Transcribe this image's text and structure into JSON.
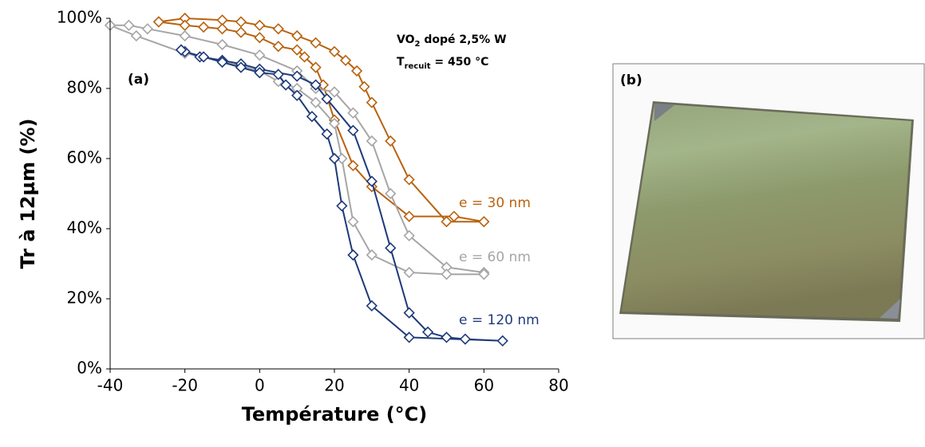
{
  "chart_data": {
    "type": "line",
    "x_label": "Température (°C)",
    "y_label": "Tr à 12µm (%)",
    "panel_label": "(a)",
    "annotations": [
      [
        "VO",
        "2",
        " dopé 2,5% W"
      ],
      [
        "T",
        "recuit",
        " = 450 °C"
      ]
    ],
    "xlim": [
      -40,
      80
    ],
    "xticks": [
      -40,
      -20,
      0,
      20,
      40,
      60,
      80
    ],
    "ylim": [
      0,
      100
    ],
    "yticks": [
      {
        "value": 0,
        "label": "0%"
      },
      {
        "value": 20,
        "label": "20%"
      },
      {
        "value": 40,
        "label": "40%"
      },
      {
        "value": 60,
        "label": "60%"
      },
      {
        "value": 80,
        "label": "80%"
      },
      {
        "value": 100,
        "label": "100%"
      }
    ],
    "series": [
      {
        "name": "e = 30 nm",
        "color": "#b8620f",
        "x": [
          -27,
          -20,
          -10,
          -5,
          0,
          5,
          10,
          15,
          20,
          23,
          26,
          28,
          30,
          35,
          40,
          50,
          60,
          52,
          40,
          30,
          25,
          20,
          17,
          15,
          12,
          10,
          5,
          0,
          -5,
          -10,
          -15,
          -20,
          -27
        ],
        "values": [
          99,
          100,
          99.5,
          99,
          98,
          97,
          95,
          93,
          90.5,
          88,
          85,
          80.5,
          76,
          65,
          54,
          42,
          42,
          43.5,
          43.5,
          52,
          58,
          71,
          81,
          86,
          89,
          91,
          92,
          94.5,
          96,
          97,
          97.5,
          98,
          99
        ]
      },
      {
        "name": "e = 60 nm",
        "color": "#a6a6a6",
        "x": [
          -40,
          -35,
          -30,
          -20,
          -10,
          0,
          10,
          15,
          20,
          25,
          30,
          35,
          40,
          50,
          60,
          60,
          50,
          40,
          30,
          25,
          22,
          20,
          15,
          10,
          5,
          0,
          -10,
          -20,
          -33,
          -40
        ],
        "values": [
          98,
          98,
          97,
          95,
          92.5,
          89.5,
          85,
          80,
          79,
          73,
          65,
          50,
          38,
          29,
          27.5,
          27,
          27,
          27.5,
          32.5,
          42,
          60,
          70,
          76,
          80,
          82,
          85,
          88,
          90,
          95,
          98
        ]
      },
      {
        "name": "e = 120 nm",
        "color": "#1f3a7a",
        "x": [
          -21,
          -16,
          -10,
          -5,
          0,
          10,
          15,
          18,
          25,
          30,
          35,
          40,
          45,
          50,
          55,
          65,
          40,
          30,
          25,
          22,
          20,
          18,
          14,
          10,
          7,
          5,
          0,
          -5,
          -10,
          -15,
          -20,
          -21
        ],
        "values": [
          91,
          89,
          88,
          87,
          85.5,
          83.5,
          81,
          77,
          68,
          53.5,
          34.5,
          16,
          10.5,
          9,
          8.5,
          8,
          9,
          18,
          32.5,
          46.5,
          60,
          67,
          72,
          78,
          81,
          84,
          84.5,
          86,
          87.5,
          89,
          90.5,
          91
        ]
      }
    ]
  },
  "photo": {
    "label": "(b)"
  }
}
